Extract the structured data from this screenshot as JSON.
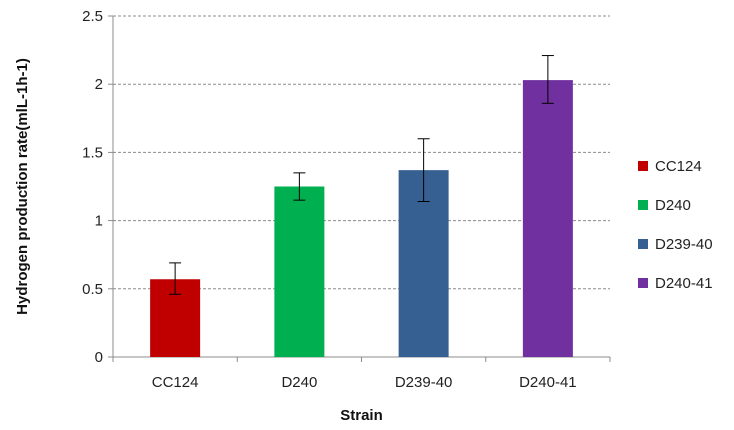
{
  "chart_data": {
    "type": "bar",
    "categories": [
      "CC124",
      "D240",
      "D239-40",
      "D240-41"
    ],
    "values": [
      0.57,
      1.25,
      1.37,
      2.03
    ],
    "error_bars": [
      {
        "low": 0.46,
        "high": 0.69
      },
      {
        "low": 1.15,
        "high": 1.35
      },
      {
        "low": 1.14,
        "high": 1.6
      },
      {
        "low": 1.86,
        "high": 2.21
      }
    ],
    "colors": [
      "#c00000",
      "#00b050",
      "#376092",
      "#7030a0"
    ],
    "xlabel": "Strain",
    "ylabel": "Hydrogen production rate(mlL-1h-1)",
    "ylim": [
      0,
      2.5
    ],
    "yticks": [
      "0",
      "0.5",
      "1",
      "1.5",
      "2",
      "2.5"
    ],
    "ytick_values": [
      0,
      0.5,
      1,
      1.5,
      2,
      2.5
    ],
    "grid": true,
    "legend": {
      "placement": "right",
      "entries": [
        "CC124",
        "D240",
        "D239-40",
        "D240-41"
      ]
    }
  }
}
